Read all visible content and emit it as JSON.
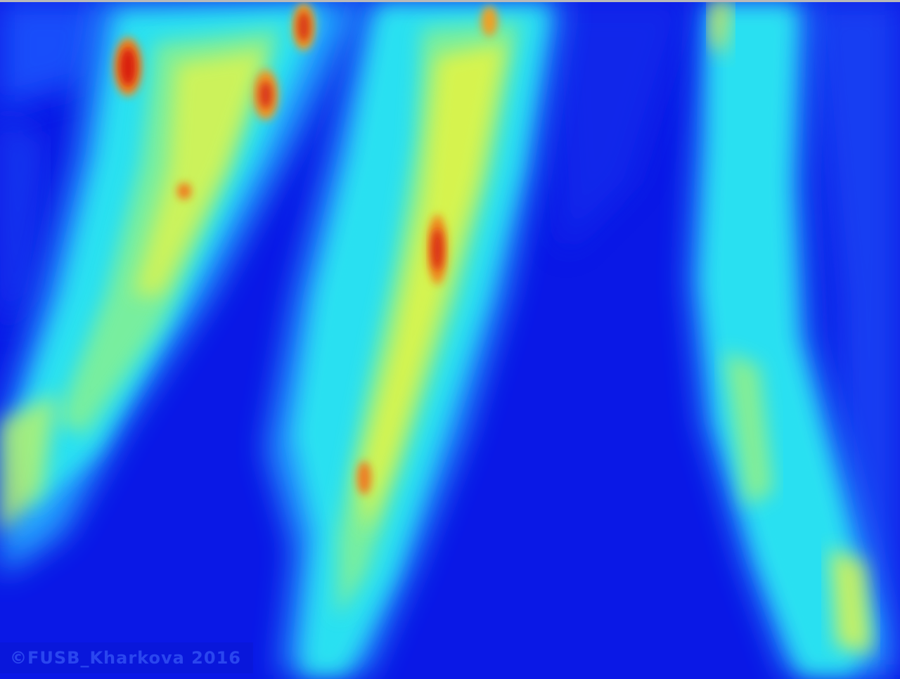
{
  "image": {
    "watermark_text": "©FUSB_Kharkova 2016"
  },
  "colors": {
    "background": "#0a18e6",
    "low": "#1f5cff",
    "mid": "#2cf2f0",
    "high": "#f2f63a",
    "peak": "#e12a12",
    "frame_edge": "#b9b9b9"
  }
}
